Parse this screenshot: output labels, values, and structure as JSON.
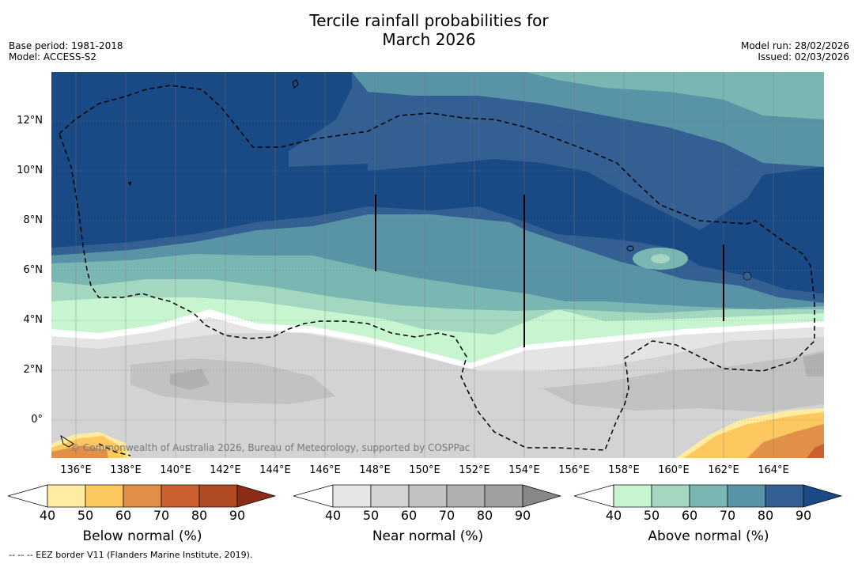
{
  "title": {
    "line1": "Tercile rainfall probabilities for",
    "line2": "March 2026"
  },
  "meta_left": {
    "base_period": "Base period: 1981-2018",
    "model": "Model: ACCESS-S2"
  },
  "meta_right": {
    "model_run": "Model run: 28/02/2026",
    "issued": "Issued: 02/03/2026"
  },
  "map": {
    "lat_labels": [
      "12°N",
      "10°N",
      "8°N",
      "6°N",
      "4°N",
      "2°N",
      "0°"
    ],
    "lon_labels": [
      "136°E",
      "138°E",
      "140°E",
      "142°E",
      "144°E",
      "146°E",
      "148°E",
      "150°E",
      "152°E",
      "154°E",
      "156°E",
      "158°E",
      "160°E",
      "162°E",
      "164°E"
    ],
    "copyright": "© Commonwealth of Australia 2026, Bureau of Meteorology, supported by COSPPac"
  },
  "colorbars": [
    {
      "title": "Below normal (%)",
      "ticks": [
        "40",
        "50",
        "60",
        "70",
        "80",
        "90"
      ],
      "colors": [
        "#ffffff",
        "#feeda0",
        "#fdc860",
        "#e09048",
        "#cc6030",
        "#b04a22",
        "#8c2c16"
      ]
    },
    {
      "title": "Near normal (%)",
      "ticks": [
        "40",
        "50",
        "60",
        "70",
        "80",
        "90"
      ],
      "colors": [
        "#ffffff",
        "#e6e6e6",
        "#d3d3d3",
        "#c2c2c2",
        "#b0b0b0",
        "#a0a0a0",
        "#878787"
      ]
    },
    {
      "title": "Above normal (%)",
      "ticks": [
        "40",
        "50",
        "60",
        "70",
        "80",
        "90"
      ],
      "colors": [
        "#ffffff",
        "#c6f5d0",
        "#a3d7c0",
        "#7ab7b2",
        "#5893a6",
        "#335f92",
        "#194a85"
      ]
    }
  ],
  "footer": "--  --  -- EEZ border V11 (Flanders Marine Institute, 2019)."
}
